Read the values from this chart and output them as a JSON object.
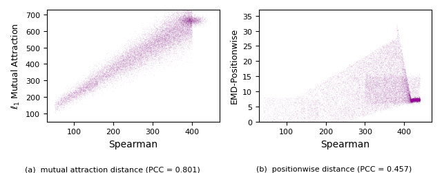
{
  "left_plot": {
    "xlabel": "Spearman",
    "ylabel": "$\\ell_1$ Mutual Attraction",
    "xlim": [
      30,
      470
    ],
    "ylim": [
      50,
      730
    ],
    "xticks": [
      100,
      200,
      300,
      400
    ],
    "yticks": [
      100,
      200,
      300,
      400,
      500,
      600,
      700
    ],
    "caption": "(a)  mutual attraction distance (PCC = 0.801)"
  },
  "right_plot": {
    "xlabel": "Spearman",
    "ylabel": "EMD-Positionwise",
    "xlim": [
      30,
      470
    ],
    "ylim": [
      0,
      37
    ],
    "xticks": [
      100,
      200,
      300,
      400
    ],
    "yticks": [
      0,
      5,
      10,
      15,
      20,
      25,
      30,
      35
    ],
    "caption": "(b)  positionwise distance (PCC = 0.457)"
  },
  "point_color": "#990099",
  "point_alpha": 0.05,
  "point_size": 0.8,
  "n_points": 20000,
  "seed": 42
}
